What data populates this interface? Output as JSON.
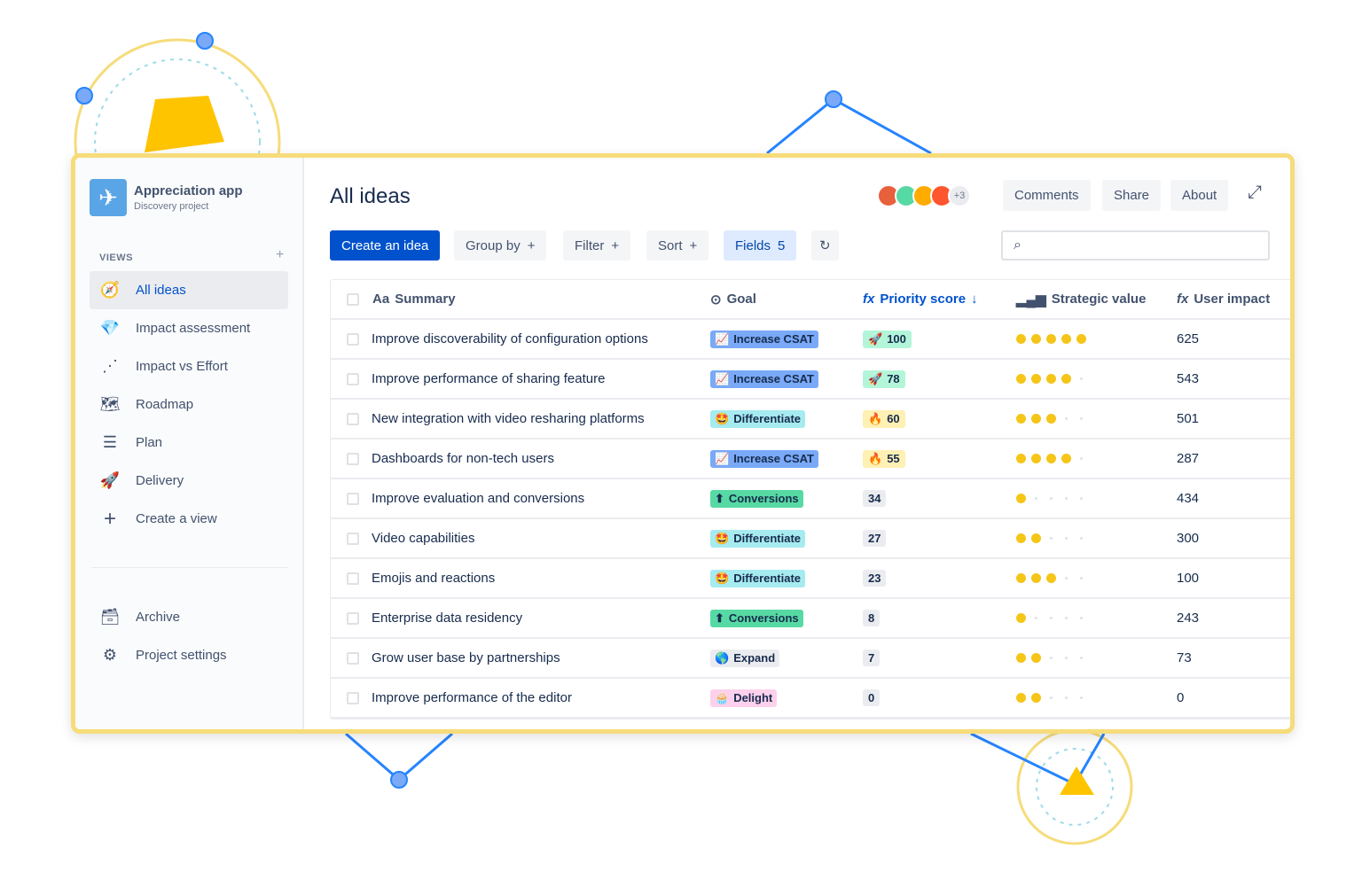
{
  "project": {
    "name": "Appreciation app",
    "subtitle": "Discovery project"
  },
  "sidebar": {
    "views_label": "VIEWS",
    "items": [
      {
        "label": "All ideas",
        "icon": "compass-icon",
        "active": true
      },
      {
        "label": "Impact assessment",
        "icon": "diamond-icon"
      },
      {
        "label": "Impact vs Effort",
        "icon": "scatter-chart-icon"
      },
      {
        "label": "Roadmap",
        "icon": "map-icon"
      },
      {
        "label": "Plan",
        "icon": "list-icon"
      },
      {
        "label": "Delivery",
        "icon": "rocket-icon"
      },
      {
        "label": "Create a view",
        "icon": "plus-icon"
      }
    ],
    "bottom": [
      {
        "label": "Archive",
        "icon": "archive-icon"
      },
      {
        "label": "Project settings",
        "icon": "gear-icon"
      }
    ]
  },
  "header": {
    "title": "All ideas",
    "avatars_more": "+3",
    "comments": "Comments",
    "share": "Share",
    "about": "About"
  },
  "toolbar": {
    "create": "Create an idea",
    "group_by": "Group by",
    "filter": "Filter",
    "sort": "Sort",
    "fields": "Fields",
    "fields_count": "5",
    "search_placeholder": ""
  },
  "table": {
    "columns": {
      "summary_icon": "Aa",
      "summary": "Summary",
      "goal": "Goal",
      "priority_fx": "fx",
      "priority": "Priority score",
      "strategic": "Strategic value",
      "impact_fx": "fx",
      "impact": "User impact"
    },
    "rows": [
      {
        "summary": "Improve discoverability of configuration options",
        "goal": "Increase CSAT",
        "goal_icon": "📈",
        "score": "100",
        "score_icon": "🚀",
        "strategic": 5,
        "impact": "625"
      },
      {
        "summary": "Improve performance of sharing feature",
        "goal": "Increase CSAT",
        "goal_icon": "📈",
        "score": "78",
        "score_icon": "🚀",
        "strategic": 4,
        "impact": "543"
      },
      {
        "summary": "New integration with video resharing platforms",
        "goal": "Differentiate",
        "goal_icon": "🤩",
        "score": "60",
        "score_icon": "🔥",
        "strategic": 3,
        "impact": "501"
      },
      {
        "summary": "Dashboards for non-tech users",
        "goal": "Increase CSAT",
        "goal_icon": "📈",
        "score": "55",
        "score_icon": "🔥",
        "strategic": 4,
        "impact": "287"
      },
      {
        "summary": "Improve evaluation and conversions",
        "goal": "Conversions",
        "goal_icon": "⬆",
        "score": "34",
        "score_icon": "",
        "strategic": 1,
        "impact": "434"
      },
      {
        "summary": "Video capabilities",
        "goal": "Differentiate",
        "goal_icon": "🤩",
        "score": "27",
        "score_icon": "",
        "strategic": 2,
        "impact": "300"
      },
      {
        "summary": "Emojis and reactions",
        "goal": "Differentiate",
        "goal_icon": "🤩",
        "score": "23",
        "score_icon": "",
        "strategic": 3,
        "impact": "100"
      },
      {
        "summary": "Enterprise data residency",
        "goal": "Conversions",
        "goal_icon": "⬆",
        "score": "8",
        "score_icon": "",
        "strategic": 1,
        "impact": "243"
      },
      {
        "summary": "Grow user base by partnerships",
        "goal": "Expand",
        "goal_icon": "🌎",
        "score": "7",
        "score_icon": "",
        "strategic": 2,
        "impact": "73"
      },
      {
        "summary": "Improve performance of the editor",
        "goal": "Delight",
        "goal_icon": "🧁",
        "score": "0",
        "score_icon": "",
        "strategic": 2,
        "impact": "0"
      }
    ]
  },
  "colors": {
    "goal": {
      "Increase CSAT": "#79a9f7",
      "Differentiate": "#a6ebf0",
      "Conversions": "#57d9a3",
      "Expand": "#ebecf0",
      "Delight": "#fdd0ec"
    },
    "score_high": "#b3f5d8",
    "score_mid": "#fff0b3",
    "score_low": "#ebecf0",
    "accent": "#0052cc",
    "border": "#f6dc7a"
  }
}
